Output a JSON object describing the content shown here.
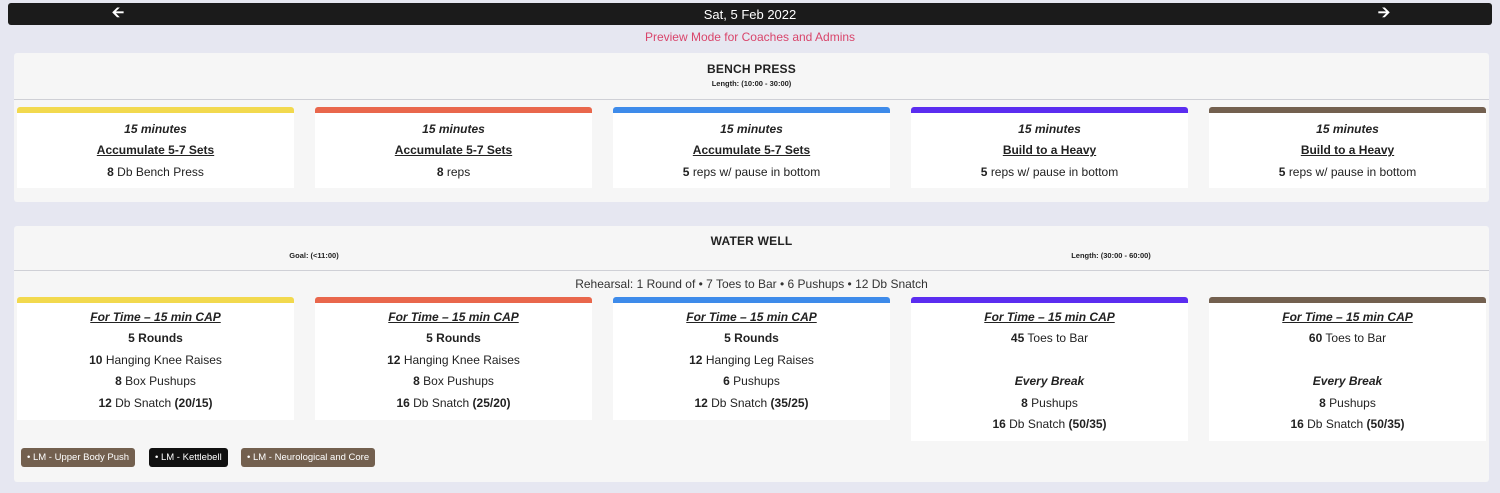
{
  "header": {
    "date": "Sat, 5 Feb 2022",
    "prev_icon": "arrow-left-icon",
    "next_icon": "arrow-right-icon",
    "preview_notice": "Preview Mode for Coaches and Admins"
  },
  "colors": {
    "yellow": "#f2d94e",
    "red": "#e9674c",
    "blue": "#3e8bea",
    "purple": "#5b2df0",
    "brown": "#73604f",
    "preview": "#d9456b"
  },
  "bench": {
    "title": "BENCH PRESS",
    "length": "Length: (10:00 - 30:00)",
    "columns": [
      {
        "time": "15 minutes",
        "scheme": "Accumulate 5-7 Sets",
        "reps": "8",
        "desc": "Db Bench Press"
      },
      {
        "time": "15 minutes",
        "scheme": "Accumulate 5-7 Sets",
        "reps": "8",
        "desc": "reps"
      },
      {
        "time": "15 minutes",
        "scheme": "Accumulate 5-7 Sets",
        "reps": "5",
        "desc": "reps w/ pause in bottom"
      },
      {
        "time": "15 minutes",
        "scheme": "Build to a Heavy",
        "reps": "5",
        "desc": "reps w/ pause in bottom"
      },
      {
        "time": "15 minutes",
        "scheme": "Build to a Heavy",
        "reps": "5",
        "desc": "reps w/ pause in bottom"
      }
    ]
  },
  "water": {
    "title": "WATER WELL",
    "goal": "Goal: (<11:00)",
    "length": "Length: (30:00 - 60:00)",
    "rehearsal": "Rehearsal: 1 Round of • 7 Toes to Bar • 6 Pushups • 12 Db Snatch",
    "columns": [
      {
        "cap": "For Time – 15 min CAP",
        "rounds": "5 Rounds",
        "l1_num": "10",
        "l1_txt": "Hanging Knee Raises",
        "l2_num": "8",
        "l2_txt": "Box Pushups",
        "l3_num": "12",
        "l3_txt": "Db Snatch",
        "l3_wt": "(20/15)"
      },
      {
        "cap": "For Time – 15 min CAP",
        "rounds": "5 Rounds",
        "l1_num": "12",
        "l1_txt": "Hanging Knee Raises",
        "l2_num": "8",
        "l2_txt": "Box Pushups",
        "l3_num": "16",
        "l3_txt": "Db Snatch",
        "l3_wt": "(25/20)"
      },
      {
        "cap": "For Time – 15 min CAP",
        "rounds": "5 Rounds",
        "l1_num": "12",
        "l1_txt": "Hanging Leg Raises",
        "l2_num": "6",
        "l2_txt": "Pushups",
        "l3_num": "12",
        "l3_txt": "Db Snatch",
        "l3_wt": "(35/25)"
      },
      {
        "cap": "For Time – 15 min CAP",
        "l1_num": "45",
        "l1_txt": "Toes to Bar",
        "every": "Every Break",
        "l2_num": "8",
        "l2_txt": "Pushups",
        "l3_num": "16",
        "l3_txt": "Db Snatch",
        "l3_wt": "(50/35)"
      },
      {
        "cap": "For Time – 15 min CAP",
        "l1_num": "60",
        "l1_txt": "Toes to Bar",
        "every": "Every Break",
        "l2_num": "8",
        "l2_txt": "Pushups",
        "l3_num": "16",
        "l3_txt": "Db Snatch",
        "l3_wt": "(50/35)"
      }
    ],
    "tags": [
      "• LM - Upper Body Push",
      "• LM - Kettlebell",
      "• LM - Neurological and Core"
    ]
  }
}
